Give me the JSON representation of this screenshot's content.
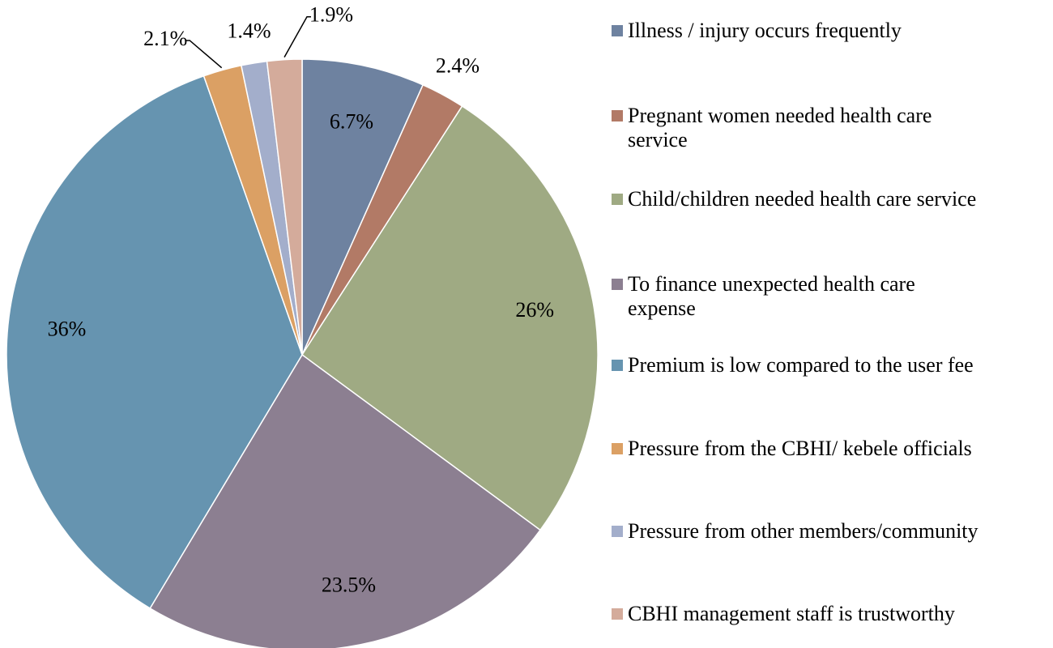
{
  "chart_data": {
    "type": "pie",
    "categories": [
      "Illness / injury occurs frequently",
      "Pregnant women needed health care service",
      "Child/children needed health care service",
      "To finance unexpected health care expense",
      "Premium is low compared to the user fee",
      "Pressure from the CBHI/ kebele officials",
      "Pressure from other members/community",
      "CBHI management staff is trustworthy"
    ],
    "values": [
      6.7,
      2.4,
      26,
      23.5,
      36,
      2.1,
      1.4,
      1.9
    ],
    "value_labels": [
      "6.7%",
      "2.4%",
      "26%",
      "23.5%",
      "36%",
      "2.1%",
      "1.4%",
      "1.9%"
    ],
    "colors": [
      "#6e82a0",
      "#b27a66",
      "#9faa83",
      "#8c7f91",
      "#6694b0",
      "#dba064",
      "#a3aecb",
      "#d4ab9b"
    ],
    "legend": "right"
  }
}
